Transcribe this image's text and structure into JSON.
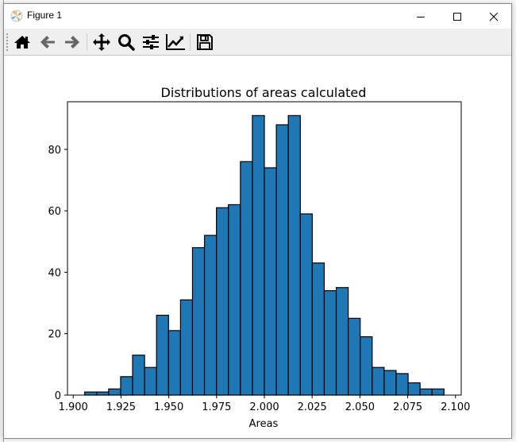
{
  "window": {
    "title": "Figure 1",
    "controls": {
      "minimize": "minimize-icon",
      "maximize": "maximize-icon",
      "close": "close-icon"
    }
  },
  "toolbar": {
    "buttons": [
      {
        "name": "home",
        "icon": "home-icon"
      },
      {
        "name": "back",
        "icon": "arrow-left-icon"
      },
      {
        "name": "forward",
        "icon": "arrow-right-icon"
      },
      {
        "name": "pan",
        "icon": "move-icon"
      },
      {
        "name": "zoom",
        "icon": "magnifier-icon"
      },
      {
        "name": "configure-subplots",
        "icon": "sliders-icon"
      },
      {
        "name": "edit-axis",
        "icon": "line-chart-icon"
      },
      {
        "name": "save",
        "icon": "floppy-disk-icon"
      }
    ]
  },
  "colors": {
    "bar_fill": "#1f77b4",
    "bar_edge": "#000000",
    "toolbar_bg": "#efefef"
  },
  "chart_data": {
    "type": "bar",
    "title": "Distributions of areas calculated",
    "xlabel": "Areas",
    "ylabel": "",
    "xlim": [
      1.897,
      2.103
    ],
    "ylim": [
      0,
      95.5
    ],
    "xticks": [
      "1.900",
      "1.925",
      "1.950",
      "1.975",
      "2.000",
      "2.025",
      "2.050",
      "2.075",
      "2.100"
    ],
    "yticks": [
      "0",
      "20",
      "40",
      "60",
      "80"
    ],
    "grid": false,
    "legend": null,
    "bin_start": 1.906,
    "bin_width": 0.006267,
    "values": [
      1,
      1,
      2,
      6,
      13,
      9,
      26,
      21,
      31,
      48,
      52,
      61,
      62,
      76,
      91,
      74,
      88,
      91,
      59,
      43,
      34,
      35,
      25,
      19,
      9,
      8,
      7,
      4,
      2,
      2
    ]
  }
}
